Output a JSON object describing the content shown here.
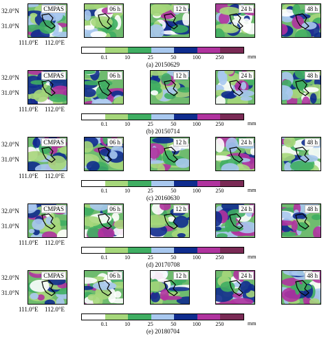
{
  "panel_labels": [
    "CMPAS",
    "06 h",
    "12 h",
    "24 h",
    "48 h"
  ],
  "y_ticks": [
    "32.0°N",
    "31.0°N"
  ],
  "x_ticks": [
    "111.0°E",
    "112.0°E"
  ],
  "colorbar": {
    "ticks": [
      "0.1",
      "10",
      "25",
      "50",
      "100",
      "250"
    ],
    "unit": "mm",
    "colors": [
      "#ffffff",
      "#a6d77b",
      "#3fae62",
      "#a8c8ef",
      "#0f2c8e",
      "#b0339e",
      "#7a2a55"
    ]
  },
  "rows": [
    {
      "caption": "(a) 20150629"
    },
    {
      "caption": "(b) 20150714"
    },
    {
      "caption": "(c) 20160630"
    },
    {
      "caption": "(d) 20170708"
    },
    {
      "caption": "(e) 20180704"
    }
  ]
}
